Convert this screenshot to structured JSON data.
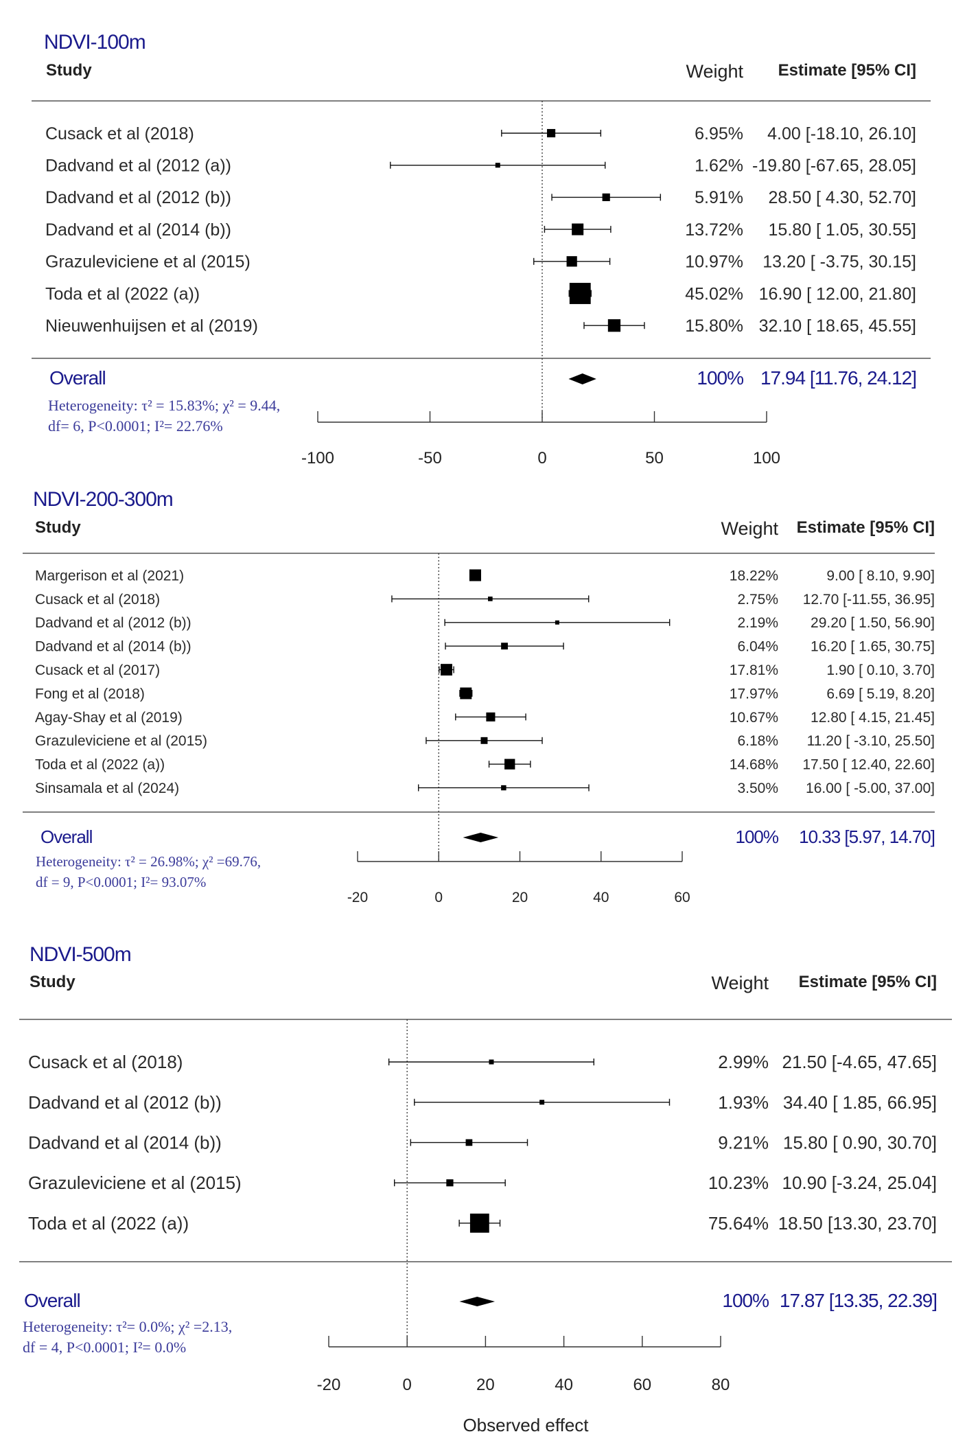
{
  "chart_data": [
    {
      "type": "forest",
      "title": "NDVI-100m",
      "headers": {
        "study": "Study",
        "weight": "Weight",
        "estimate": "Estimate [95% CI]"
      },
      "xlim": [
        -100,
        100
      ],
      "ticks": [
        -100,
        -50,
        0,
        50,
        100
      ],
      "tick_labels": [
        "-100",
        "-50",
        "0",
        "50",
        "100"
      ],
      "studies": [
        {
          "name": "Cusack et al (2018)",
          "weight": "6.95%",
          "estimate_text": "4.00 [-18.10, 26.10]",
          "est": 4.0,
          "lo": -18.1,
          "hi": 26.1,
          "w": 6.95
        },
        {
          "name": "Dadvand et al (2012 (a))",
          "weight": "1.62%",
          "estimate_text": "-19.80 [-67.65, 28.05]",
          "est": -19.8,
          "lo": -67.65,
          "hi": 28.05,
          "w": 1.62
        },
        {
          "name": "Dadvand et al (2012 (b))",
          "weight": "5.91%",
          "estimate_text": "28.50 [ 4.30, 52.70]",
          "est": 28.5,
          "lo": 4.3,
          "hi": 52.7,
          "w": 5.91
        },
        {
          "name": "Dadvand et al (2014 (b))",
          "weight": "13.72%",
          "estimate_text": "15.80 [ 1.05, 30.55]",
          "est": 15.8,
          "lo": 1.05,
          "hi": 30.55,
          "w": 13.72
        },
        {
          "name": "Grazuleviciene et al (2015)",
          "weight": "10.97%",
          "estimate_text": "13.20 [ -3.75, 30.15]",
          "est": 13.2,
          "lo": -3.75,
          "hi": 30.15,
          "w": 10.97
        },
        {
          "name": "Toda et al (2022 (a))",
          "weight": "45.02%",
          "estimate_text": "16.90 [ 12.00, 21.80]",
          "est": 16.9,
          "lo": 12.0,
          "hi": 21.8,
          "w": 45.02
        },
        {
          "name": "Nieuwenhuijsen et al (2019)",
          "weight": "15.80%",
          "estimate_text": "32.10 [ 18.65, 45.55]",
          "est": 32.1,
          "lo": 18.65,
          "hi": 45.55,
          "w": 15.8
        }
      ],
      "overall": {
        "label": "Overall",
        "weight": "100%",
        "estimate_text": "17.94 [11.76, 24.12]",
        "est": 17.94,
        "lo": 11.76,
        "hi": 24.12,
        "heterogeneity_line1": "Heterogeneity: τ² = 15.83%; χ² = 9.44,",
        "heterogeneity_line2": "df= 6, P<0.0001; I²= 22.76%"
      }
    },
    {
      "type": "forest",
      "title": "NDVI-200-300m",
      "headers": {
        "study": "Study",
        "weight": "Weight",
        "estimate": "Estimate [95% CI]"
      },
      "xlim": [
        -20,
        60
      ],
      "ticks": [
        -20,
        0,
        20,
        40,
        60
      ],
      "tick_labels": [
        "-20",
        "0",
        "20",
        "40",
        "60"
      ],
      "studies": [
        {
          "name": "Margerison et al (2021)",
          "weight": "18.22%",
          "estimate_text": "9.00 [ 8.10, 9.90]",
          "est": 9.0,
          "lo": 8.1,
          "hi": 9.9,
          "w": 18.22
        },
        {
          "name": "Cusack et al (2018)",
          "weight": "2.75%",
          "estimate_text": "12.70 [-11.55, 36.95]",
          "est": 12.7,
          "lo": -11.55,
          "hi": 36.95,
          "w": 2.75
        },
        {
          "name": "Dadvand et al (2012 (b))",
          "weight": "2.19%",
          "estimate_text": "29.20 [ 1.50, 56.90]",
          "est": 29.2,
          "lo": 1.5,
          "hi": 56.9,
          "w": 2.19
        },
        {
          "name": "Dadvand et al (2014 (b))",
          "weight": "6.04%",
          "estimate_text": "16.20 [ 1.65, 30.75]",
          "est": 16.2,
          "lo": 1.65,
          "hi": 30.75,
          "w": 6.04
        },
        {
          "name": "Cusack et al (2017)",
          "weight": "17.81%",
          "estimate_text": "1.90 [ 0.10, 3.70]",
          "est": 1.9,
          "lo": 0.1,
          "hi": 3.7,
          "w": 17.81
        },
        {
          "name": "Fong et al (2018)",
          "weight": "17.97%",
          "estimate_text": "6.69 [ 5.19, 8.20]",
          "est": 6.69,
          "lo": 5.19,
          "hi": 8.2,
          "w": 17.97
        },
        {
          "name": "Agay-Shay et al (2019)",
          "weight": "10.67%",
          "estimate_text": "12.80 [ 4.15, 21.45]",
          "est": 12.8,
          "lo": 4.15,
          "hi": 21.45,
          "w": 10.67
        },
        {
          "name": "Grazuleviciene et al (2015)",
          "weight": "6.18%",
          "estimate_text": "11.20 [ -3.10, 25.50]",
          "est": 11.2,
          "lo": -3.1,
          "hi": 25.5,
          "w": 6.18
        },
        {
          "name": "Toda et al (2022 (a))",
          "weight": "14.68%",
          "estimate_text": "17.50 [ 12.40, 22.60]",
          "est": 17.5,
          "lo": 12.4,
          "hi": 22.6,
          "w": 14.68
        },
        {
          "name": "Sinsamala et al (2024)",
          "weight": "3.50%",
          "estimate_text": "16.00 [ -5.00, 37.00]",
          "est": 16.0,
          "lo": -5.0,
          "hi": 37.0,
          "w": 3.5
        }
      ],
      "overall": {
        "label": "Overall",
        "weight": "100%",
        "estimate_text": "10.33 [5.97, 14.70]",
        "est": 10.33,
        "lo": 5.97,
        "hi": 14.7,
        "heterogeneity_line1": "Heterogeneity: τ² = 26.98%; χ² =69.76,",
        "heterogeneity_line2": "df = 9, P<0.0001; I²= 93.07%"
      }
    },
    {
      "type": "forest",
      "title": "NDVI-500m",
      "headers": {
        "study": "Study",
        "weight": "Weight",
        "estimate": "Estimate [95% CI]"
      },
      "xlim": [
        -20,
        80
      ],
      "ticks": [
        -20,
        0,
        20,
        40,
        60,
        80
      ],
      "tick_labels": [
        "-20",
        "0",
        "20",
        "40",
        "60",
        "80"
      ],
      "xlabel": "Observed effect",
      "studies": [
        {
          "name": "Cusack et al (2018)",
          "weight": "2.99%",
          "estimate_text": "21.50 [-4.65, 47.65]",
          "est": 21.5,
          "lo": -4.65,
          "hi": 47.65,
          "w": 2.99
        },
        {
          "name": "Dadvand et al (2012 (b))",
          "weight": "1.93%",
          "estimate_text": "34.40 [ 1.85, 66.95]",
          "est": 34.4,
          "lo": 1.85,
          "hi": 66.95,
          "w": 1.93
        },
        {
          "name": "Dadvand et al (2014 (b))",
          "weight": "9.21%",
          "estimate_text": "15.80 [ 0.90, 30.70]",
          "est": 15.8,
          "lo": 0.9,
          "hi": 30.7,
          "w": 9.21
        },
        {
          "name": "Grazuleviciene et al (2015)",
          "weight": "10.23%",
          "estimate_text": "10.90 [-3.24, 25.04]",
          "est": 10.9,
          "lo": -3.24,
          "hi": 25.04,
          "w": 10.23
        },
        {
          "name": "Toda et al (2022 (a))",
          "weight": "75.64%",
          "estimate_text": "18.50 [13.30, 23.70]",
          "est": 18.5,
          "lo": 13.3,
          "hi": 23.7,
          "w": 75.64
        }
      ],
      "overall": {
        "label": "Overall",
        "weight": "100%",
        "estimate_text": "17.87 [13.35, 22.39]",
        "est": 17.87,
        "lo": 13.35,
        "hi": 22.39,
        "heterogeneity_line1": "Heterogeneity: τ²= 0.0%; χ² =2.13,",
        "heterogeneity_line2": "df = 4, P<0.0001; I²= 0.0%"
      }
    }
  ]
}
